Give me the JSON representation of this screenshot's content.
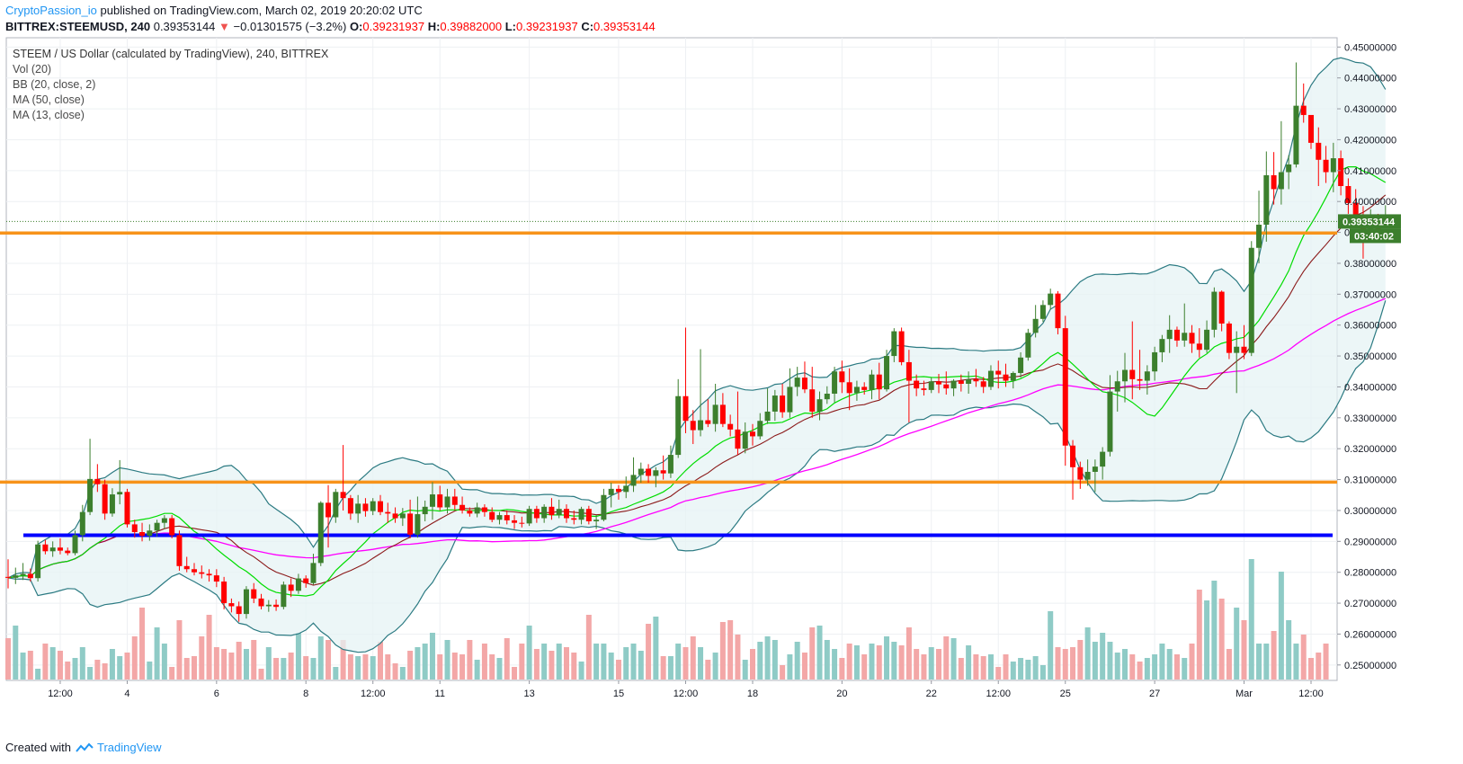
{
  "header": {
    "author": "CryptoPassion_io",
    "published": "published on TradingView.com, March 02, 2019 20:20:02 UTC",
    "symbol": "BITTREX:STEEMUSD, 240",
    "price": "0.39353144",
    "change_arrow": "▼",
    "change": "−0.01301575 (−3.2%)",
    "o_label": "O:",
    "o_value": "0.39231937",
    "h_label": "H:",
    "h_value": "0.39882000",
    "l_label": "L:",
    "l_value": "0.39231937",
    "c_label": "C:",
    "c_value": "0.39353144"
  },
  "legend": {
    "title": "STEEM / US Dollar (calculated by TradingView), 240, BITTREX",
    "items": [
      "Vol (20)",
      "BB (20, close, 2)",
      "MA (50, close)",
      "MA (13, close)"
    ]
  },
  "footer": {
    "created_with": "Created with",
    "brand": "TradingView"
  },
  "colors": {
    "up": "#3c7f2d",
    "down": "#ff0000",
    "vol_up": "#8fcbc6",
    "vol_down": "#f3a7a7",
    "bb": "#2b7a82",
    "bb_fill": "#e5f3f4",
    "ma50": "#ff00ff",
    "ma13": "#00dd00",
    "mid": "#8b1a1a",
    "orange": "#f7931a",
    "blue": "#0000ff"
  },
  "chart_data": {
    "type": "candlestick",
    "ylim": [
      0.245,
      0.453
    ],
    "y_ticks": [
      "0.25000000",
      "0.26000000",
      "0.27000000",
      "0.28000000",
      "0.29000000",
      "0.30000000",
      "0.31000000",
      "0.32000000",
      "0.33000000",
      "0.34000000",
      "0.35000000",
      "0.36000000",
      "0.37000000",
      "0.38000000",
      "0.39000000",
      "0.40000000",
      "0.41000000",
      "0.42000000",
      "0.43000000",
      "0.44000000",
      "0.45000000"
    ],
    "x_ticks": [
      {
        "label": "12:00",
        "bar": 7
      },
      {
        "label": "4",
        "bar": 16
      },
      {
        "label": "6",
        "bar": 28
      },
      {
        "label": "8",
        "bar": 40
      },
      {
        "label": "12:00",
        "bar": 49
      },
      {
        "label": "11",
        "bar": 58
      },
      {
        "label": "13",
        "bar": 70
      },
      {
        "label": "15",
        "bar": 82
      },
      {
        "label": "12:00",
        "bar": 91
      },
      {
        "label": "18",
        "bar": 100
      },
      {
        "label": "20",
        "bar": 112
      },
      {
        "label": "22",
        "bar": 124
      },
      {
        "label": "12:00",
        "bar": 133
      },
      {
        "label": "25",
        "bar": 142
      },
      {
        "label": "27",
        "bar": 154
      },
      {
        "label": "Mar",
        "bar": 166
      },
      {
        "label": "12:00",
        "bar": 175
      }
    ],
    "price_label": "0.39353144",
    "countdown_label": "03:40:02",
    "last_price": 0.39353144,
    "horizontal_lines": [
      {
        "price": 0.3898,
        "color": "orange"
      },
      {
        "price": 0.3092,
        "color": "orange"
      },
      {
        "price": 0.292,
        "color": "blue"
      }
    ],
    "candles": [
      [
        0.2785,
        0.2842,
        0.2748,
        0.2782
      ],
      [
        0.2782,
        0.2815,
        0.2762,
        0.279
      ],
      [
        0.279,
        0.283,
        0.2775,
        0.2795
      ],
      [
        0.2795,
        0.2812,
        0.277,
        0.2781
      ],
      [
        0.2781,
        0.2902,
        0.277,
        0.289
      ],
      [
        0.289,
        0.2905,
        0.2858,
        0.2868
      ],
      [
        0.2868,
        0.29,
        0.285,
        0.288
      ],
      [
        0.288,
        0.291,
        0.2858,
        0.287
      ],
      [
        0.287,
        0.288,
        0.2855,
        0.2862
      ],
      [
        0.2862,
        0.2935,
        0.2855,
        0.292
      ],
      [
        0.292,
        0.3018,
        0.29,
        0.2995
      ],
      [
        0.2995,
        0.3232,
        0.2985,
        0.3102
      ],
      [
        0.3102,
        0.315,
        0.306,
        0.3085
      ],
      [
        0.3085,
        0.31,
        0.297,
        0.299
      ],
      [
        0.299,
        0.3072,
        0.298,
        0.3052
      ],
      [
        0.3052,
        0.3163,
        0.302,
        0.306
      ],
      [
        0.306,
        0.307,
        0.2945,
        0.2955
      ],
      [
        0.2955,
        0.297,
        0.2912,
        0.293
      ],
      [
        0.293,
        0.296,
        0.29,
        0.2918
      ],
      [
        0.2918,
        0.2955,
        0.2902,
        0.2935
      ],
      [
        0.2935,
        0.297,
        0.2915,
        0.296
      ],
      [
        0.296,
        0.2985,
        0.294,
        0.2975
      ],
      [
        0.2975,
        0.2985,
        0.291,
        0.292
      ],
      [
        0.292,
        0.2935,
        0.2805,
        0.282
      ],
      [
        0.282,
        0.285,
        0.28,
        0.281
      ],
      [
        0.281,
        0.283,
        0.279,
        0.28
      ],
      [
        0.28,
        0.2822,
        0.278,
        0.2795
      ],
      [
        0.2795,
        0.281,
        0.277,
        0.279
      ],
      [
        0.279,
        0.281,
        0.2752,
        0.277
      ],
      [
        0.277,
        0.2785,
        0.268,
        0.27
      ],
      [
        0.27,
        0.2715,
        0.267,
        0.269
      ],
      [
        0.269,
        0.2705,
        0.264,
        0.2665
      ],
      [
        0.2665,
        0.2755,
        0.265,
        0.2745
      ],
      [
        0.2745,
        0.2765,
        0.27,
        0.2715
      ],
      [
        0.2715,
        0.273,
        0.268,
        0.269
      ],
      [
        0.269,
        0.271,
        0.2672,
        0.2695
      ],
      [
        0.2695,
        0.2712,
        0.2675,
        0.2688
      ],
      [
        0.2688,
        0.277,
        0.268,
        0.276
      ],
      [
        0.276,
        0.278,
        0.272,
        0.274
      ],
      [
        0.274,
        0.2795,
        0.273,
        0.278
      ],
      [
        0.278,
        0.279,
        0.275,
        0.2765
      ],
      [
        0.2765,
        0.286,
        0.276,
        0.283
      ],
      [
        0.283,
        0.303,
        0.282,
        0.3025
      ],
      [
        0.3025,
        0.3082,
        0.288,
        0.2978
      ],
      [
        0.2978,
        0.307,
        0.296,
        0.306
      ],
      [
        0.306,
        0.3212,
        0.3,
        0.304
      ],
      [
        0.304,
        0.305,
        0.297,
        0.299
      ],
      [
        0.299,
        0.305,
        0.296,
        0.3022
      ],
      [
        0.3022,
        0.304,
        0.298,
        0.2998
      ],
      [
        0.2998,
        0.304,
        0.2985,
        0.303
      ],
      [
        0.303,
        0.305,
        0.2985,
        0.2995
      ],
      [
        0.2995,
        0.3025,
        0.296,
        0.299
      ],
      [
        0.299,
        0.301,
        0.296,
        0.2975
      ],
      [
        0.2975,
        0.3008,
        0.295,
        0.299
      ],
      [
        0.299,
        0.3035,
        0.291,
        0.2922
      ],
      [
        0.2922,
        0.3045,
        0.2912,
        0.2988
      ],
      [
        0.2988,
        0.3032,
        0.2965,
        0.3012
      ],
      [
        0.3012,
        0.3092,
        0.297,
        0.3052
      ],
      [
        0.3052,
        0.308,
        0.3,
        0.301
      ],
      [
        0.301,
        0.307,
        0.299,
        0.3045
      ],
      [
        0.3045,
        0.307,
        0.3002,
        0.3018
      ],
      [
        0.3018,
        0.3045,
        0.299,
        0.3
      ],
      [
        0.3,
        0.301,
        0.298,
        0.299
      ],
      [
        0.299,
        0.3025,
        0.2978,
        0.301
      ],
      [
        0.301,
        0.302,
        0.298,
        0.2995
      ],
      [
        0.2995,
        0.301,
        0.2962,
        0.297
      ],
      [
        0.297,
        0.2995,
        0.2955,
        0.2985
      ],
      [
        0.2985,
        0.3,
        0.2955,
        0.2968
      ],
      [
        0.2968,
        0.2985,
        0.294,
        0.296
      ],
      [
        0.296,
        0.298,
        0.2945,
        0.2958
      ],
      [
        0.2958,
        0.3015,
        0.295,
        0.3005
      ],
      [
        0.3005,
        0.3015,
        0.296,
        0.2975
      ],
      [
        0.2975,
        0.302,
        0.296,
        0.3012
      ],
      [
        0.3012,
        0.304,
        0.297,
        0.2985
      ],
      [
        0.2985,
        0.3035,
        0.2975,
        0.3005
      ],
      [
        0.3005,
        0.302,
        0.296,
        0.2975
      ],
      [
        0.2975,
        0.3,
        0.2955,
        0.297
      ],
      [
        0.297,
        0.3012,
        0.2955,
        0.3005
      ],
      [
        0.3005,
        0.3015,
        0.2955,
        0.2965
      ],
      [
        0.2965,
        0.2985,
        0.294,
        0.297
      ],
      [
        0.297,
        0.307,
        0.2965,
        0.305
      ],
      [
        0.305,
        0.309,
        0.301,
        0.307
      ],
      [
        0.307,
        0.3082,
        0.3035,
        0.306
      ],
      [
        0.306,
        0.311,
        0.304,
        0.308
      ],
      [
        0.308,
        0.3172,
        0.306,
        0.3115
      ],
      [
        0.3115,
        0.3155,
        0.309,
        0.3135
      ],
      [
        0.3135,
        0.315,
        0.309,
        0.3112
      ],
      [
        0.3112,
        0.314,
        0.3075,
        0.313
      ],
      [
        0.313,
        0.3178,
        0.31,
        0.312
      ],
      [
        0.312,
        0.321,
        0.3105,
        0.318
      ],
      [
        0.318,
        0.3425,
        0.317,
        0.337
      ],
      [
        0.337,
        0.3592,
        0.325,
        0.329
      ],
      [
        0.329,
        0.3325,
        0.3215,
        0.326
      ],
      [
        0.326,
        0.3522,
        0.324,
        0.3292
      ],
      [
        0.3292,
        0.336,
        0.327,
        0.328
      ],
      [
        0.328,
        0.341,
        0.3255,
        0.3342
      ],
      [
        0.3342,
        0.338,
        0.327,
        0.328
      ],
      [
        0.328,
        0.331,
        0.324,
        0.3262
      ],
      [
        0.3262,
        0.3385,
        0.318,
        0.32
      ],
      [
        0.32,
        0.3285,
        0.3185,
        0.3255
      ],
      [
        0.3255,
        0.328,
        0.321,
        0.324
      ],
      [
        0.324,
        0.3315,
        0.323,
        0.329
      ],
      [
        0.329,
        0.3395,
        0.328,
        0.332
      ],
      [
        0.332,
        0.339,
        0.329,
        0.3372
      ],
      [
        0.3372,
        0.341,
        0.33,
        0.3318
      ],
      [
        0.3318,
        0.346,
        0.33,
        0.34
      ],
      [
        0.34,
        0.3465,
        0.337,
        0.343
      ],
      [
        0.343,
        0.3482,
        0.338,
        0.3392
      ],
      [
        0.3392,
        0.3465,
        0.33,
        0.332
      ],
      [
        0.332,
        0.3385,
        0.3292,
        0.336
      ],
      [
        0.336,
        0.3402,
        0.3345,
        0.3378
      ],
      [
        0.3378,
        0.3465,
        0.335,
        0.345
      ],
      [
        0.345,
        0.3485,
        0.338,
        0.3415
      ],
      [
        0.3415,
        0.346,
        0.3325,
        0.338
      ],
      [
        0.338,
        0.342,
        0.3355,
        0.34
      ],
      [
        0.34,
        0.3415,
        0.3375,
        0.339
      ],
      [
        0.339,
        0.3455,
        0.336,
        0.344
      ],
      [
        0.344,
        0.3478,
        0.336,
        0.3392
      ],
      [
        0.3392,
        0.352,
        0.3385,
        0.35
      ],
      [
        0.35,
        0.359,
        0.348,
        0.358
      ],
      [
        0.358,
        0.3592,
        0.347,
        0.348
      ],
      [
        0.348,
        0.352,
        0.3285,
        0.342
      ],
      [
        0.342,
        0.344,
        0.337,
        0.3395
      ],
      [
        0.3395,
        0.342,
        0.3372,
        0.339
      ],
      [
        0.339,
        0.343,
        0.338,
        0.3418
      ],
      [
        0.3418,
        0.3442,
        0.338,
        0.3408
      ],
      [
        0.3408,
        0.345,
        0.3375,
        0.3395
      ],
      [
        0.3395,
        0.3425,
        0.337,
        0.342
      ],
      [
        0.342,
        0.344,
        0.3385,
        0.341
      ],
      [
        0.341,
        0.345,
        0.3378,
        0.3425
      ],
      [
        0.3425,
        0.3458,
        0.34,
        0.3418
      ],
      [
        0.3418,
        0.3432,
        0.338,
        0.34
      ],
      [
        0.34,
        0.347,
        0.339,
        0.3452
      ],
      [
        0.3452,
        0.3485,
        0.3395,
        0.344
      ],
      [
        0.344,
        0.3475,
        0.34,
        0.342
      ],
      [
        0.342,
        0.345,
        0.3395,
        0.3445
      ],
      [
        0.3445,
        0.3512,
        0.343,
        0.3495
      ],
      [
        0.3495,
        0.3588,
        0.3485,
        0.3575
      ],
      [
        0.3575,
        0.3665,
        0.356,
        0.362
      ],
      [
        0.362,
        0.368,
        0.361,
        0.3665
      ],
      [
        0.3665,
        0.3718,
        0.365,
        0.3702
      ],
      [
        0.3702,
        0.371,
        0.357,
        0.359
      ],
      [
        0.359,
        0.363,
        0.3145,
        0.321
      ],
      [
        0.321,
        0.3228,
        0.3035,
        0.314
      ],
      [
        0.314,
        0.3158,
        0.307,
        0.31
      ],
      [
        0.31,
        0.3165,
        0.308,
        0.3125
      ],
      [
        0.3125,
        0.3165,
        0.306,
        0.3142
      ],
      [
        0.3142,
        0.3205,
        0.31,
        0.319
      ],
      [
        0.319,
        0.3438,
        0.3175,
        0.3385
      ],
      [
        0.3385,
        0.3452,
        0.332,
        0.3418
      ],
      [
        0.3418,
        0.351,
        0.335,
        0.3455
      ],
      [
        0.3455,
        0.3612,
        0.336,
        0.3425
      ],
      [
        0.3425,
        0.352,
        0.339,
        0.342
      ],
      [
        0.342,
        0.347,
        0.3375,
        0.345
      ],
      [
        0.345,
        0.353,
        0.342,
        0.3512
      ],
      [
        0.3512,
        0.3568,
        0.348,
        0.3555
      ],
      [
        0.3555,
        0.3632,
        0.351,
        0.3585
      ],
      [
        0.3585,
        0.3595,
        0.353,
        0.355
      ],
      [
        0.355,
        0.367,
        0.353,
        0.3575
      ],
      [
        0.3575,
        0.36,
        0.351,
        0.354
      ],
      [
        0.354,
        0.359,
        0.3495,
        0.352
      ],
      [
        0.352,
        0.3615,
        0.351,
        0.3585
      ],
      [
        0.3585,
        0.3722,
        0.356,
        0.3708
      ],
      [
        0.3708,
        0.3712,
        0.358,
        0.3605
      ],
      [
        0.3605,
        0.3612,
        0.349,
        0.351
      ],
      [
        0.351,
        0.358,
        0.338,
        0.353
      ],
      [
        0.353,
        0.36,
        0.349,
        0.351
      ],
      [
        0.351,
        0.3872,
        0.35,
        0.385
      ],
      [
        0.385,
        0.4035,
        0.38,
        0.3925
      ],
      [
        0.3925,
        0.4162,
        0.387,
        0.4085
      ],
      [
        0.4085,
        0.416,
        0.399,
        0.404
      ],
      [
        0.404,
        0.426,
        0.399,
        0.4095
      ],
      [
        0.4095,
        0.415,
        0.404,
        0.412
      ],
      [
        0.412,
        0.445,
        0.411,
        0.431
      ],
      [
        0.431,
        0.4382,
        0.4255,
        0.428
      ],
      [
        0.428,
        0.4268,
        0.417,
        0.419
      ],
      [
        0.419,
        0.424,
        0.405,
        0.4135
      ],
      [
        0.4135,
        0.418,
        0.406,
        0.4095
      ],
      [
        0.4095,
        0.419,
        0.403,
        0.414
      ],
      [
        0.414,
        0.4165,
        0.402,
        0.405
      ],
      [
        0.405,
        0.4075,
        0.396,
        0.3995
      ],
      [
        0.3995,
        0.404,
        0.392,
        0.3925
      ],
      [
        0.3925,
        0.3985,
        0.3815,
        0.3905
      ],
      [
        0.3905,
        0.3975,
        0.3895,
        0.393
      ],
      [
        0.393,
        0.396,
        0.388,
        0.391
      ],
      [
        0.3923,
        0.3988,
        0.3923,
        0.3935
      ]
    ],
    "volume": [
      0.23,
      0.3,
      0.15,
      0.16,
      0.06,
      0.2,
      0.18,
      0.16,
      0.1,
      0.12,
      0.18,
      0.07,
      0.11,
      0.09,
      0.17,
      0.13,
      0.15,
      0.24,
      0.4,
      0.1,
      0.29,
      0.2,
      0.07,
      0.33,
      0.12,
      0.13,
      0.24,
      0.36,
      0.18,
      0.17,
      0.15,
      0.21,
      0.17,
      0.22,
      0.06,
      0.18,
      0.12,
      0.12,
      0.15,
      0.26,
      0.13,
      0.12,
      0.24,
      0.22,
      0.07,
      0.22,
      0.14,
      0.13,
      0.14,
      0.13,
      0.21,
      0.14,
      0.09,
      0.07,
      0.16,
      0.18,
      0.2,
      0.26,
      0.14,
      0.22,
      0.15,
      0.14,
      0.22,
      0.11,
      0.2,
      0.14,
      0.12,
      0.23,
      0.07,
      0.2,
      0.3,
      0.17,
      0.2,
      0.16,
      0.2,
      0.18,
      0.15,
      0.1,
      0.36,
      0.2,
      0.2,
      0.15,
      0.11,
      0.18,
      0.2,
      0.16,
      0.31,
      0.35,
      0.13,
      0.13,
      0.2,
      0.18,
      0.24,
      0.18,
      0.11,
      0.15,
      0.32,
      0.33,
      0.25,
      0.11,
      0.17,
      0.21,
      0.24,
      0.22,
      0.08,
      0.14,
      0.21,
      0.15,
      0.29,
      0.3,
      0.22,
      0.17,
      0.12,
      0.2,
      0.19,
      0.14,
      0.2,
      0.19,
      0.24,
      0.21,
      0.19,
      0.29,
      0.17,
      0.14,
      0.18,
      0.17,
      0.24,
      0.23,
      0.12,
      0.19,
      0.14,
      0.13,
      0.14,
      0.07,
      0.14,
      0.1,
      0.12,
      0.11,
      0.13,
      0.08,
      0.38,
      0.18,
      0.17,
      0.18,
      0.22,
      0.29,
      0.21,
      0.26,
      0.21,
      0.15,
      0.17,
      0.14,
      0.1,
      0.12,
      0.14,
      0.2,
      0.17,
      0.14,
      0.12,
      0.2,
      0.5,
      0.44,
      0.55,
      0.45,
      0.17,
      0.4,
      0.33,
      0.67,
      0.2,
      0.2,
      0.27,
      0.6,
      0.33,
      0.2,
      0.25,
      0.12,
      0.15,
      0.2
    ]
  }
}
